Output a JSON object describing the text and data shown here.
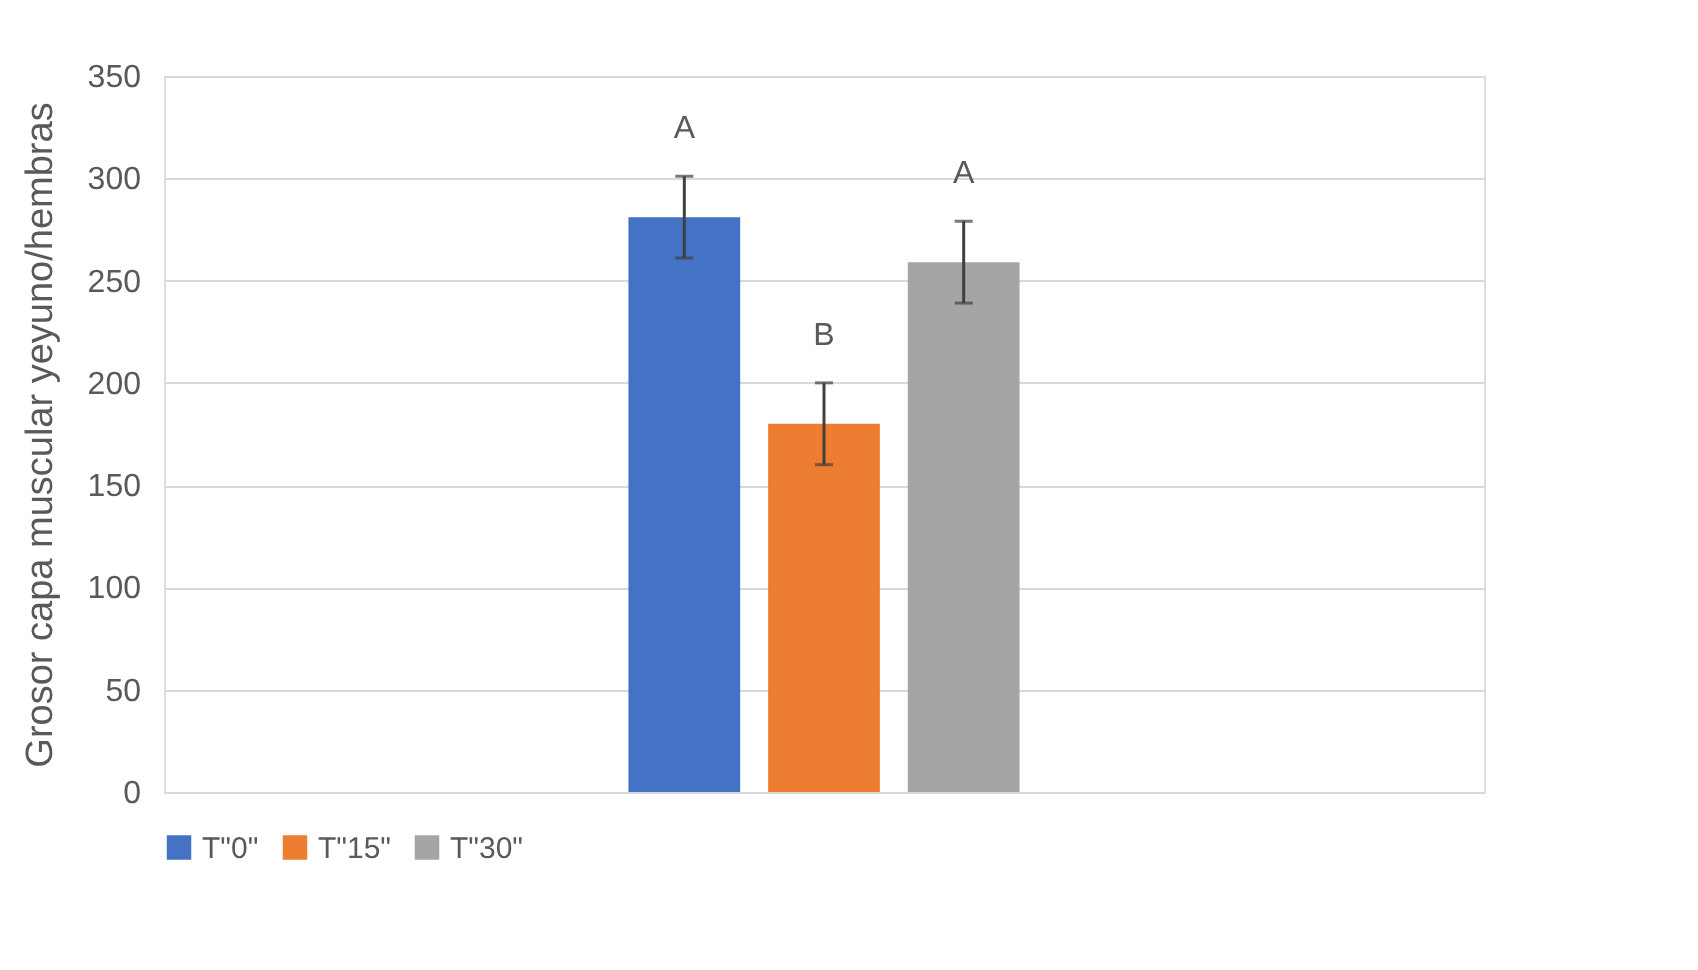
{
  "chart_data": {
    "type": "bar",
    "ylabel": "Grosor capa muscular yeyuno/hembras",
    "categories": [
      null
    ],
    "series": [
      {
        "name": "T\"0\"",
        "color": "#4472c4",
        "values": [
          281
        ],
        "errors": [
          20
        ]
      },
      {
        "name": "T\"15\"",
        "color": "#ed7d31",
        "values": [
          180
        ],
        "errors": [
          20
        ]
      },
      {
        "name": "T\"30\"",
        "color": "#a5a5a5",
        "values": [
          259
        ],
        "errors": [
          20
        ]
      }
    ],
    "annotations": [
      "A",
      "B",
      "A"
    ],
    "ylim": [
      0,
      350
    ],
    "yticks": [
      0,
      50,
      100,
      150,
      200,
      250,
      300,
      350
    ],
    "grid": "y",
    "legend": "bottom"
  }
}
